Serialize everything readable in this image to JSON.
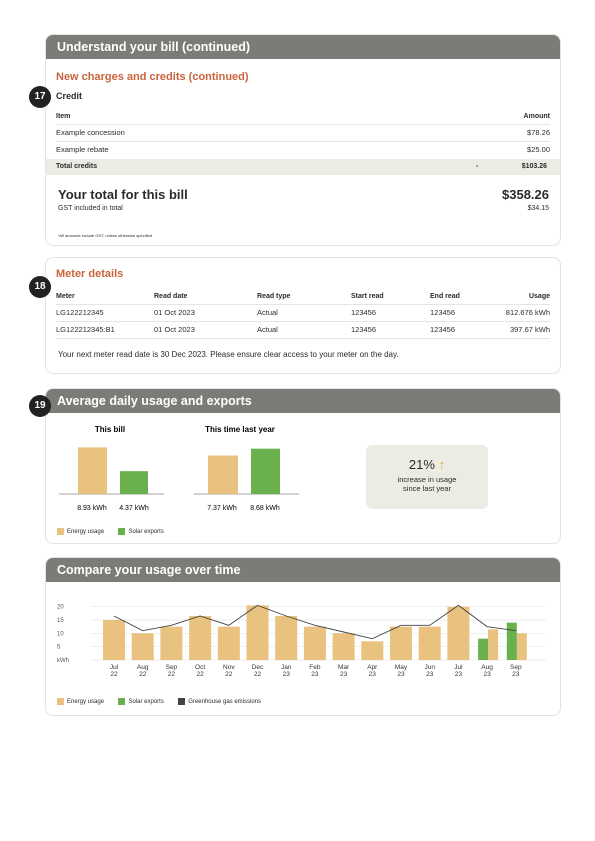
{
  "section1": {
    "title": "Understand your bill (continued)",
    "subtitle": "New charges and credits (continued)",
    "badge": "17",
    "credit_label": "Credit",
    "col_item": "Item",
    "col_amount": "Amount",
    "items": [
      {
        "name": "Example concession",
        "amount": "$78.26"
      },
      {
        "name": "Example rebate",
        "amount": "$25.00"
      }
    ],
    "total_label": "Total credits",
    "total_dash": "-",
    "total_amount": "$103.26",
    "grand_label": "Your total for this bill",
    "grand_amount": "$358.26",
    "gst_label": "GST included in total",
    "gst_amount": "$34.15",
    "footnote": "*All amounts include GST, unless otherwise specified"
  },
  "section2": {
    "title": "Meter details",
    "badge": "18",
    "headers": [
      "Meter",
      "Read date",
      "Read type",
      "Start read",
      "End read",
      "Usage"
    ],
    "rows": [
      [
        "LG122212345",
        "01 Oct 2023",
        "Actual",
        "123456",
        "123456",
        "812.676 kWh"
      ],
      [
        "LG122212345:B1",
        "01 Oct 2023",
        "Actual",
        "123456",
        "123456",
        "397.67 kWh"
      ]
    ],
    "note": "Your next meter read date is 30 Dec 2023. Please ensure clear access to your meter on the day."
  },
  "section3": {
    "title": "Average daily usage and exports",
    "badge": "19",
    "this_bill_label": "This bill",
    "last_year_label": "This time last year",
    "this_bill_energy": "8.93 kWh",
    "this_bill_solar": "4.37 kWh",
    "last_year_energy": "7.37 kWh",
    "last_year_solar": "8.68 kWh",
    "increase_pct": "21%",
    "increase_text1": "increase in usage",
    "increase_text2": "since last year",
    "legend_energy": "Energy usage",
    "legend_solar": "Solar exports"
  },
  "section4": {
    "title": "Compare your usage over time",
    "legend_energy": "Energy usage",
    "legend_solar": "Solar exports",
    "legend_ghg": "Greenhouse gas emissions"
  },
  "colors": {
    "energy": "#e8c27e",
    "solar": "#6ab04c",
    "ghg": "#444444",
    "header": "#7b7b77",
    "accent": "#c8643c",
    "arrow": "#e8a33a"
  },
  "chart_data": [
    {
      "type": "bar",
      "title": "This bill",
      "categories": [
        "Energy usage",
        "Solar exports"
      ],
      "values": [
        8.93,
        4.37
      ]
    },
    {
      "type": "bar",
      "title": "This time last year",
      "categories": [
        "Energy usage",
        "Solar exports"
      ],
      "values": [
        7.37,
        8.68
      ]
    },
    {
      "type": "bar",
      "title": "Compare your usage over time",
      "ylabel": "kWh",
      "yticks": [
        5,
        10,
        15,
        20
      ],
      "ylim": [
        0,
        21
      ],
      "x_month": [
        "Jul",
        "Aug",
        "Sep",
        "Oct",
        "Nov",
        "Dec",
        "Jan",
        "Feb",
        "Mar",
        "Apr",
        "May",
        "Jun",
        "Jul",
        "Aug",
        "Sep"
      ],
      "x_year": [
        "22",
        "22",
        "22",
        "22",
        "22",
        "22",
        "23",
        "23",
        "23",
        "23",
        "23",
        "23",
        "23",
        "23",
        "23"
      ],
      "series": [
        {
          "name": "Energy usage",
          "values": [
            15,
            10,
            12.5,
            16.5,
            12.5,
            20.5,
            16.5,
            12.5,
            10,
            7,
            12.5,
            12.5,
            20,
            11.5,
            10
          ]
        },
        {
          "name": "Solar exports",
          "values": [
            null,
            null,
            null,
            null,
            null,
            null,
            null,
            null,
            null,
            null,
            null,
            null,
            null,
            8,
            14
          ]
        },
        {
          "name": "Greenhouse gas emissions",
          "values": [
            16.5,
            11,
            13,
            16.5,
            13,
            20.5,
            16.5,
            13,
            10.5,
            8,
            13,
            13,
            20.5,
            12.5,
            11
          ]
        }
      ]
    }
  ]
}
